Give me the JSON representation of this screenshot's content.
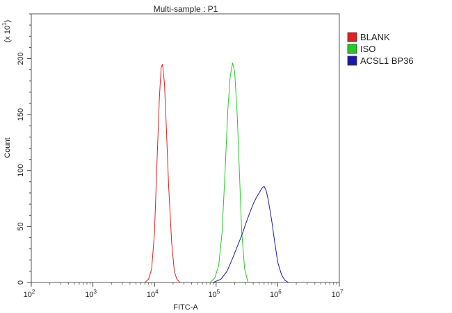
{
  "chart_data": {
    "type": "line",
    "title": "Multi-sample : P1",
    "xlabel": "FITC-A",
    "ylabel": "Count",
    "y_multiplier_label": "(x 10",
    "y_multiplier_exp": "1",
    "y_multiplier_close": ")",
    "xscale": "log",
    "xlim": [
      100,
      10000000
    ],
    "ylim": [
      0,
      240
    ],
    "x_ticks": [
      {
        "base": "10",
        "exp": "2",
        "value": 100
      },
      {
        "base": "10",
        "exp": "3",
        "value": 1000
      },
      {
        "base": "10",
        "exp": "4",
        "value": 10000
      },
      {
        "base": "10",
        "exp": "5",
        "value": 100000
      },
      {
        "base": "10",
        "exp": "6",
        "value": 1000000
      },
      {
        "base": "10",
        "exp": "7",
        "value": 10000000
      }
    ],
    "y_ticks": [
      "0",
      "50",
      "100",
      "150",
      "200"
    ],
    "legend_position": "top-right",
    "grid": false,
    "series": [
      {
        "name": "BLANK",
        "color": "#e02020",
        "x": [
          7000,
          8000,
          9000,
          10000,
          11000,
          12000,
          12800,
          13500,
          14500,
          15500,
          17000,
          19000,
          21000,
          23000,
          26000
        ],
        "y": [
          0,
          3,
          12,
          45,
          110,
          165,
          192,
          195,
          178,
          140,
          85,
          35,
          10,
          3,
          0
        ]
      },
      {
        "name": "ISO",
        "color": "#22cc22",
        "x": [
          80000,
          95000,
          110000,
          125000,
          140000,
          155000,
          170000,
          185000,
          200000,
          220000,
          240000,
          260000,
          290000,
          330000
        ],
        "y": [
          0,
          4,
          15,
          45,
          100,
          155,
          185,
          196,
          188,
          150,
          95,
          45,
          12,
          0
        ]
      },
      {
        "name": "ACSL1 BP36",
        "color": "#1a1aaa",
        "x": [
          90000,
          120000,
          150000,
          180000,
          220000,
          260000,
          300000,
          350000,
          400000,
          450000,
          500000,
          550000,
          600000,
          650000,
          700000,
          800000,
          900000,
          1000000,
          1150000,
          1300000,
          1500000
        ],
        "y": [
          0,
          3,
          10,
          20,
          32,
          42,
          52,
          62,
          70,
          76,
          80,
          84,
          86,
          82,
          74,
          55,
          35,
          18,
          7,
          2,
          0
        ]
      }
    ]
  }
}
